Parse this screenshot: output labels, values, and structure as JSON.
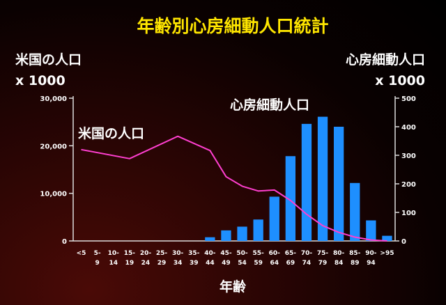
{
  "chart_data": {
    "type": "bar+line",
    "title": "年齢別心房細動人口統計",
    "xlabel": "年齢",
    "ylabel_left": [
      "米国の人口",
      "x 1000"
    ],
    "ylabel_right": [
      "心房細動人口",
      "x 1000"
    ],
    "y_left_ticks": [
      "0",
      "10,000",
      "20,000",
      "30,000"
    ],
    "y_right_ticks": [
      "0",
      "100",
      "200",
      "300",
      "400",
      "500"
    ],
    "ylim_left": [
      0,
      30000
    ],
    "ylim_right": [
      0,
      500
    ],
    "grid": false,
    "categories": [
      [
        "<5"
      ],
      [
        "5-",
        "9"
      ],
      [
        "10-",
        "14"
      ],
      [
        "15-",
        "19"
      ],
      [
        "20-",
        "24"
      ],
      [
        "25-",
        "29"
      ],
      [
        "30-",
        "34"
      ],
      [
        "35-",
        "39"
      ],
      [
        "40-",
        "44"
      ],
      [
        "45-",
        "49"
      ],
      [
        "50-",
        "54"
      ],
      [
        "55-",
        "59"
      ],
      [
        "60-",
        "64"
      ],
      [
        "65-",
        "69"
      ],
      [
        "70-",
        "74"
      ],
      [
        "75-",
        "79"
      ],
      [
        "80-",
        "84"
      ],
      [
        "85-",
        "89"
      ],
      [
        "90-",
        "94"
      ],
      [
        ">95"
      ]
    ],
    "series": [
      {
        "name": "心房細動人口",
        "type": "bar",
        "axis": "right",
        "color": "#1e8fff",
        "values": [
          0,
          0,
          0,
          0,
          0,
          0,
          0,
          0,
          13,
          37,
          50,
          75,
          155,
          297,
          410,
          435,
          400,
          203,
          72,
          18
        ]
      },
      {
        "name": "米国の人口",
        "type": "line",
        "axis": "left",
        "color": "#ff3fd0",
        "values": [
          19200,
          null,
          null,
          17300,
          null,
          null,
          22000,
          null,
          19000,
          13500,
          11500,
          10500,
          10700,
          8500,
          5600,
          3200,
          1800,
          800,
          200,
          0
        ]
      }
    ]
  }
}
